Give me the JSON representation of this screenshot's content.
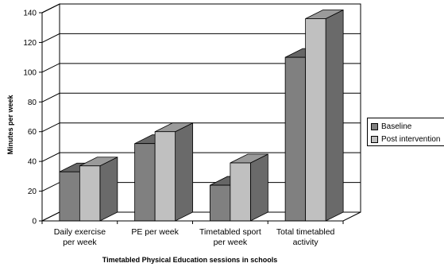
{
  "chart_data": {
    "type": "bar",
    "style": "3d-clustered-column",
    "categories": [
      [
        "Daily exercise",
        "per week"
      ],
      [
        "PE per week"
      ],
      [
        "Timetabled sport",
        "per week"
      ],
      [
        "Total timetabled",
        "activity"
      ]
    ],
    "series": [
      {
        "name": "Baseline",
        "values": [
          33,
          52,
          24,
          110
        ],
        "color": "#808080"
      },
      {
        "name": "Post intervention",
        "values": [
          37,
          60,
          39,
          136
        ],
        "color": "#c0c0c0"
      }
    ],
    "xlabel": "Timetabled Physical Education sessions in schools",
    "ylabel": "Minutes per week",
    "ylim": [
      0,
      140
    ],
    "yticks": [
      0,
      20,
      40,
      60,
      80,
      100,
      120,
      140
    ],
    "grid": true,
    "legend": "right",
    "wall_color": "#ffffff",
    "outline_color": "#000000"
  }
}
